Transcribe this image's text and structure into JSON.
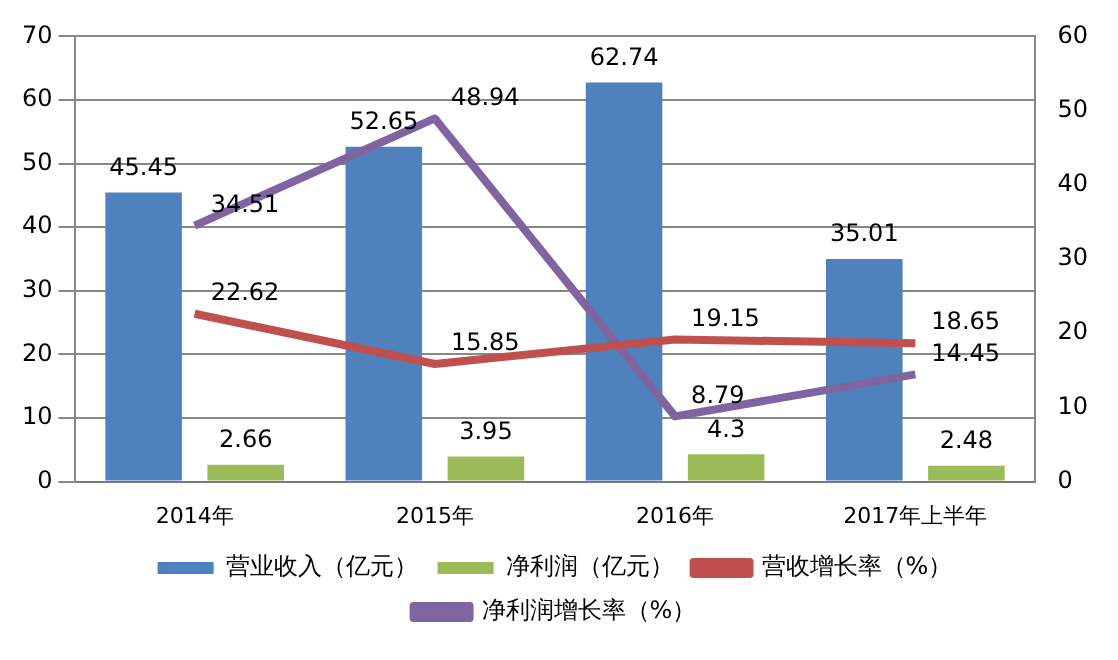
{
  "chart_data": {
    "type": "bar",
    "categories": [
      "2014年",
      "2015年",
      "2016年",
      "2017年上半年"
    ],
    "series": [
      {
        "name": "营业收入（亿元）",
        "color": "#4f81bd",
        "values": [
          45.45,
          52.65,
          62.74,
          35.01
        ]
      },
      {
        "name": "净利润（亿元）",
        "color": "#9bbb59",
        "values": [
          2.66,
          3.95,
          4.3,
          2.48
        ]
      },
      {
        "name": "营收增长率（%）",
        "color": "#c0504d",
        "type": "line",
        "axis": "y2",
        "values": [
          22.62,
          15.85,
          19.15,
          18.65
        ]
      },
      {
        "name": "净利润增长率（%）",
        "color": "#8064a2",
        "type": "line",
        "axis": "y2",
        "values": [
          34.51,
          48.94,
          8.79,
          14.45
        ]
      }
    ],
    "ylim": [
      0,
      70
    ],
    "yticks": [
      0,
      10,
      20,
      30,
      40,
      50,
      60,
      70
    ],
    "y2lim": [
      0,
      60
    ],
    "y2ticks": [
      0,
      10,
      20,
      30,
      40,
      50,
      60
    ],
    "grid": "y",
    "legend": "bottom",
    "data_labels": true,
    "marker": "none"
  }
}
